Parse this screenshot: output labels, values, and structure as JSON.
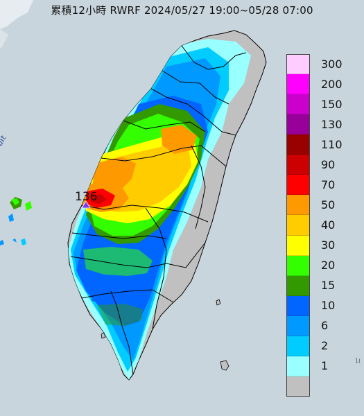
{
  "title": "累積12小時 RWRF 2024/05/27 19:00~05/28 07:00",
  "strait_label": "Formosa Strait",
  "max_station": {
    "value": "136",
    "marker_icon": "triangle-marker-icon",
    "marker_color": "#7c3aed"
  },
  "corner_mark": "1(",
  "colors": {
    "sea": "#c9d5dd",
    "land_dry": "#c0c0c0",
    "county_border": "#000000"
  },
  "legend": {
    "unit_levels": [
      {
        "label": "300",
        "color": "#ffccff"
      },
      {
        "label": "200",
        "color": "#ff00ff"
      },
      {
        "label": "150",
        "color": "#cc00cc"
      },
      {
        "label": "130",
        "color": "#990099"
      },
      {
        "label": "110",
        "color": "#990000"
      },
      {
        "label": "90",
        "color": "#cc0000"
      },
      {
        "label": "70",
        "color": "#ff0000"
      },
      {
        "label": "50",
        "color": "#ff9900"
      },
      {
        "label": "40",
        "color": "#ffcc00"
      },
      {
        "label": "30",
        "color": "#ffff00"
      },
      {
        "label": "20",
        "color": "#33ff00"
      },
      {
        "label": "15",
        "color": "#339900"
      },
      {
        "label": "10",
        "color": "#0066ff"
      },
      {
        "label": "6",
        "color": "#0099ff"
      },
      {
        "label": "2",
        "color": "#00ccff"
      },
      {
        "label": "1",
        "color": "#99ffff"
      },
      {
        "label": "",
        "color": "#c0c0c0"
      }
    ]
  }
}
